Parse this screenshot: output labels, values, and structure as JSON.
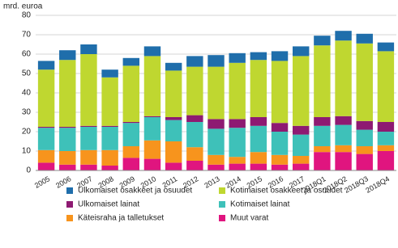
{
  "chart_data": {
    "type": "stacked-bar",
    "y_label": "mrd. euroa",
    "categories": [
      "2005",
      "2006",
      "2007",
      "2008",
      "2009",
      "2010",
      "2011",
      "2012",
      "2013",
      "2014",
      "2015",
      "2016",
      "2017",
      "2018Q1",
      "2018Q2",
      "2018Q3",
      "2018Q4"
    ],
    "series": [
      {
        "name": "Muut varat",
        "color": "#e0157f",
        "values": [
          4,
          3,
          3,
          2.5,
          6.5,
          6,
          4,
          5,
          3,
          3.5,
          3.5,
          3,
          3.5,
          9.5,
          9.5,
          8.5,
          10
        ]
      },
      {
        "name": "Käteisraha ja talletukset",
        "color": "#f7941d",
        "values": [
          6.5,
          7,
          7.5,
          8,
          6,
          9.5,
          11,
          7,
          5,
          3.5,
          6,
          5,
          4,
          3,
          3.5,
          4,
          3
        ]
      },
      {
        "name": "Kotimaiset lainat",
        "color": "#3ec1b9",
        "values": [
          11.5,
          12,
          12,
          12,
          12,
          12,
          11,
          13,
          13.5,
          15,
          13.5,
          12,
          11,
          10.5,
          10.5,
          8.5,
          7
        ]
      },
      {
        "name": "Ulkomaiset lainat",
        "color": "#8e1a72",
        "values": [
          0.5,
          0.5,
          0.5,
          0.5,
          0.5,
          0.5,
          1.5,
          3.5,
          5,
          4.5,
          4.5,
          4.5,
          4.5,
          4.5,
          4.5,
          4.5,
          5
        ]
      },
      {
        "name": "Kotimaiset osakkeet ja osuudet",
        "color": "#bfd730",
        "values": [
          29.5,
          34.5,
          37,
          25,
          29,
          31,
          24,
          25,
          27,
          29,
          29.5,
          32,
          36,
          37,
          39,
          40,
          36.5
        ]
      },
      {
        "name": "Ulkomaiset osakkeet ja osuudet",
        "color": "#1f6eab",
        "values": [
          4.5,
          5,
          5,
          4,
          4,
          5,
          4,
          5.5,
          6,
          5,
          4,
          5,
          5,
          5,
          5,
          5,
          4.5
        ]
      }
    ],
    "ylim": [
      0,
      80
    ],
    "yticks": [
      0,
      10,
      20,
      30,
      40,
      50,
      60,
      70,
      80
    ],
    "grid": true
  }
}
